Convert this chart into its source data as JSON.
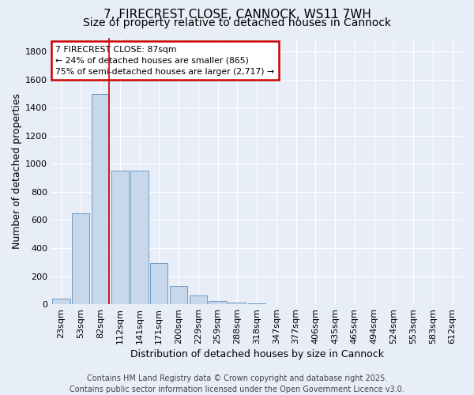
{
  "title": "7, FIRECREST CLOSE, CANNOCK, WS11 7WH",
  "subtitle": "Size of property relative to detached houses in Cannock",
  "xlabel": "Distribution of detached houses by size in Cannock",
  "ylabel": "Number of detached properties",
  "footer_line1": "Contains HM Land Registry data © Crown copyright and database right 2025.",
  "footer_line2": "Contains public sector information licensed under the Open Government Licence v3.0.",
  "bins": [
    "23sqm",
    "53sqm",
    "82sqm",
    "112sqm",
    "141sqm",
    "171sqm",
    "200sqm",
    "229sqm",
    "259sqm",
    "288sqm",
    "318sqm",
    "347sqm",
    "377sqm",
    "406sqm",
    "435sqm",
    "465sqm",
    "494sqm",
    "524sqm",
    "553sqm",
    "583sqm",
    "612sqm"
  ],
  "values": [
    40,
    650,
    1500,
    950,
    950,
    295,
    130,
    60,
    25,
    10,
    5,
    0,
    0,
    0,
    0,
    0,
    0,
    0,
    0,
    0,
    0
  ],
  "bar_color": "#c8d8ec",
  "bar_edge_color": "#6090b8",
  "property_line_bin": 2,
  "property_sqm": 87,
  "annotation_line1": "7 FIRECREST CLOSE: 87sqm",
  "annotation_line2": "← 24% of detached houses are smaller (865)",
  "annotation_line3": "75% of semi-detached houses are larger (2,717) →",
  "annotation_box_color": "#ffffff",
  "annotation_box_edge": "#cc0000",
  "ylim": [
    0,
    1900
  ],
  "yticks": [
    0,
    200,
    400,
    600,
    800,
    1000,
    1200,
    1400,
    1600,
    1800
  ],
  "bg_color": "#e8eef8",
  "grid_color": "#ffffff",
  "title_fontsize": 11,
  "subtitle_fontsize": 10,
  "xlabel_fontsize": 9,
  "ylabel_fontsize": 9,
  "tick_fontsize": 8,
  "footer_fontsize": 7
}
